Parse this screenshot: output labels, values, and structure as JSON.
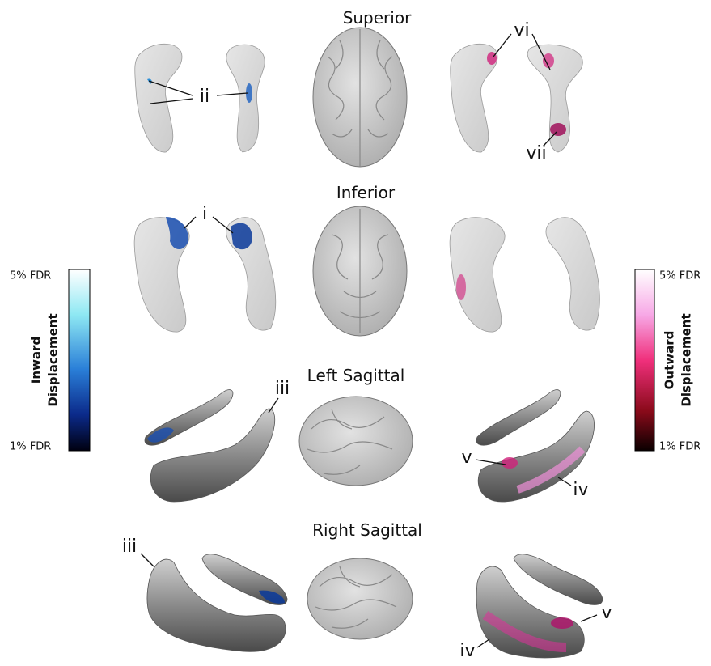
{
  "views": [
    {
      "title": "Superior"
    },
    {
      "title": "Inferior"
    },
    {
      "title": "Left Sagittal"
    },
    {
      "title": "Right Sagittal"
    }
  ],
  "annotations": [
    "ii",
    "vi",
    "vii",
    "i",
    "iii",
    "v",
    "iv",
    "iii",
    "v",
    "iv"
  ],
  "colorbars": [
    {
      "title": [
        "Inward",
        "Displacement"
      ],
      "top": "5% FDR",
      "bottom": "1% FDR"
    },
    {
      "title": [
        "Outward",
        "Displacement"
      ],
      "top": "5% FDR",
      "bottom": "1% FDR"
    }
  ]
}
